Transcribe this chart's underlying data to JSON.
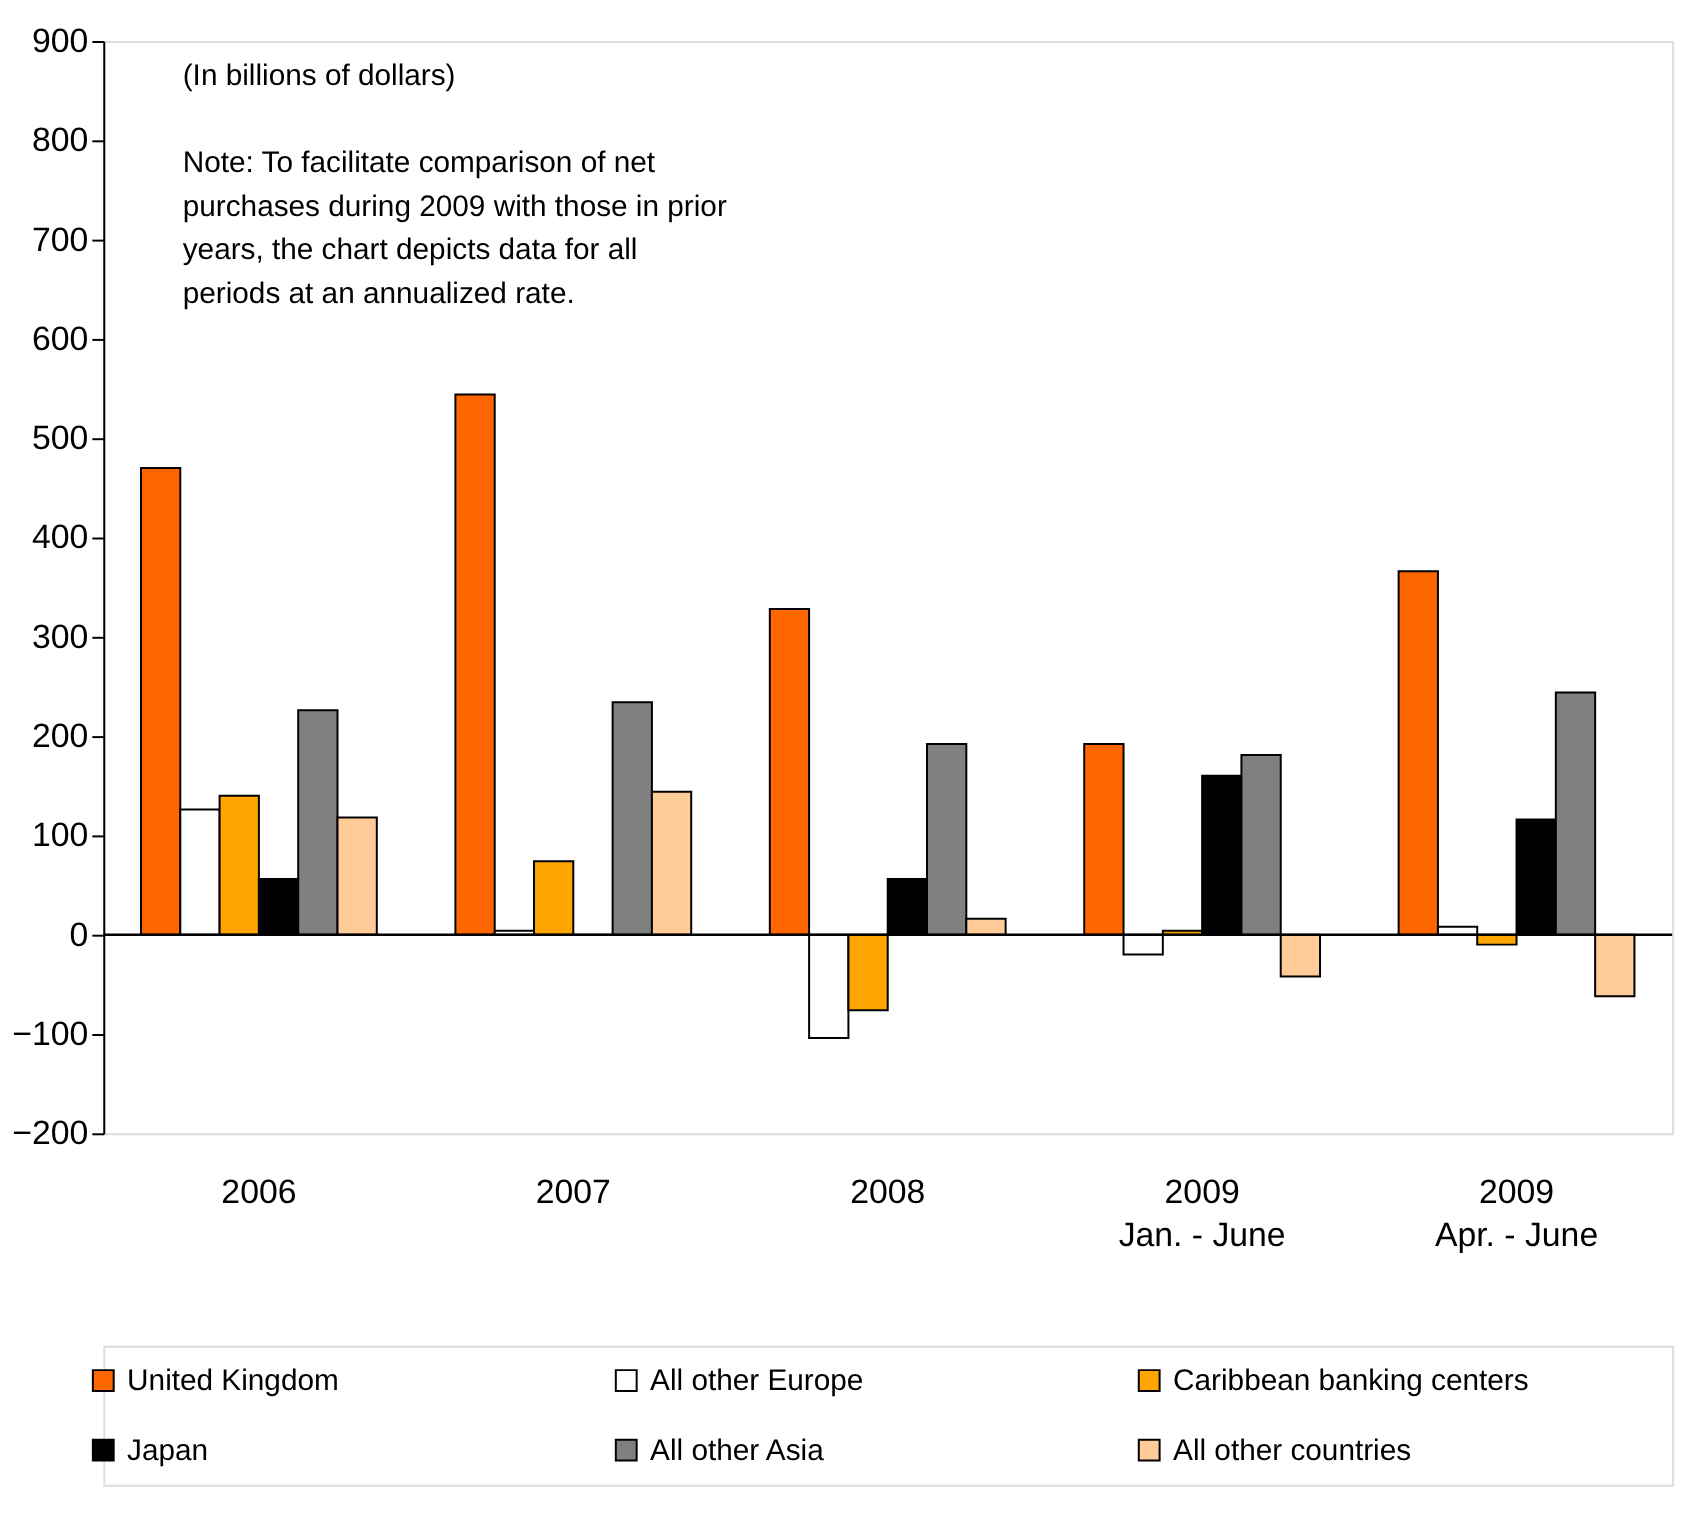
{
  "chart_data": {
    "type": "bar",
    "categories": [
      "2006",
      "2007",
      "2008",
      "2009\nJan. - June",
      "2009\nApr. - June"
    ],
    "series": [
      {
        "name": "United Kingdom",
        "color": "#ff6600",
        "values": [
          470,
          544,
          328,
          192,
          366
        ]
      },
      {
        "name": "All other Europe",
        "color": "#ffffff",
        "values": [
          126,
          4,
          -104,
          -20,
          8
        ]
      },
      {
        "name": "Caribbean banking centers",
        "color": "#ffa500",
        "values": [
          140,
          74,
          -76,
          4,
          -10
        ]
      },
      {
        "name": "Japan",
        "color": "#000000",
        "values": [
          56,
          0,
          56,
          160,
          116
        ]
      },
      {
        "name": "All other Asia",
        "color": "#808080",
        "values": [
          226,
          234,
          192,
          181,
          244
        ]
      },
      {
        "name": "All other countries",
        "color": "#ffcc99",
        "values": [
          118,
          144,
          16,
          -42,
          -62
        ]
      }
    ],
    "ylim": [
      -200,
      900
    ],
    "yticks": [
      -200,
      -100,
      0,
      100,
      200,
      300,
      400,
      500,
      600,
      700,
      800,
      900
    ],
    "ref_lines": [
      {
        "axis": "y",
        "value": 0
      }
    ],
    "annotations": [
      "(In billions of dollars)",
      "Note: To facilitate comparison of net purchases during 2009 with those in prior years, the chart depicts data for all periods at an annualized rate."
    ],
    "legend": "bottom",
    "grid": false
  }
}
